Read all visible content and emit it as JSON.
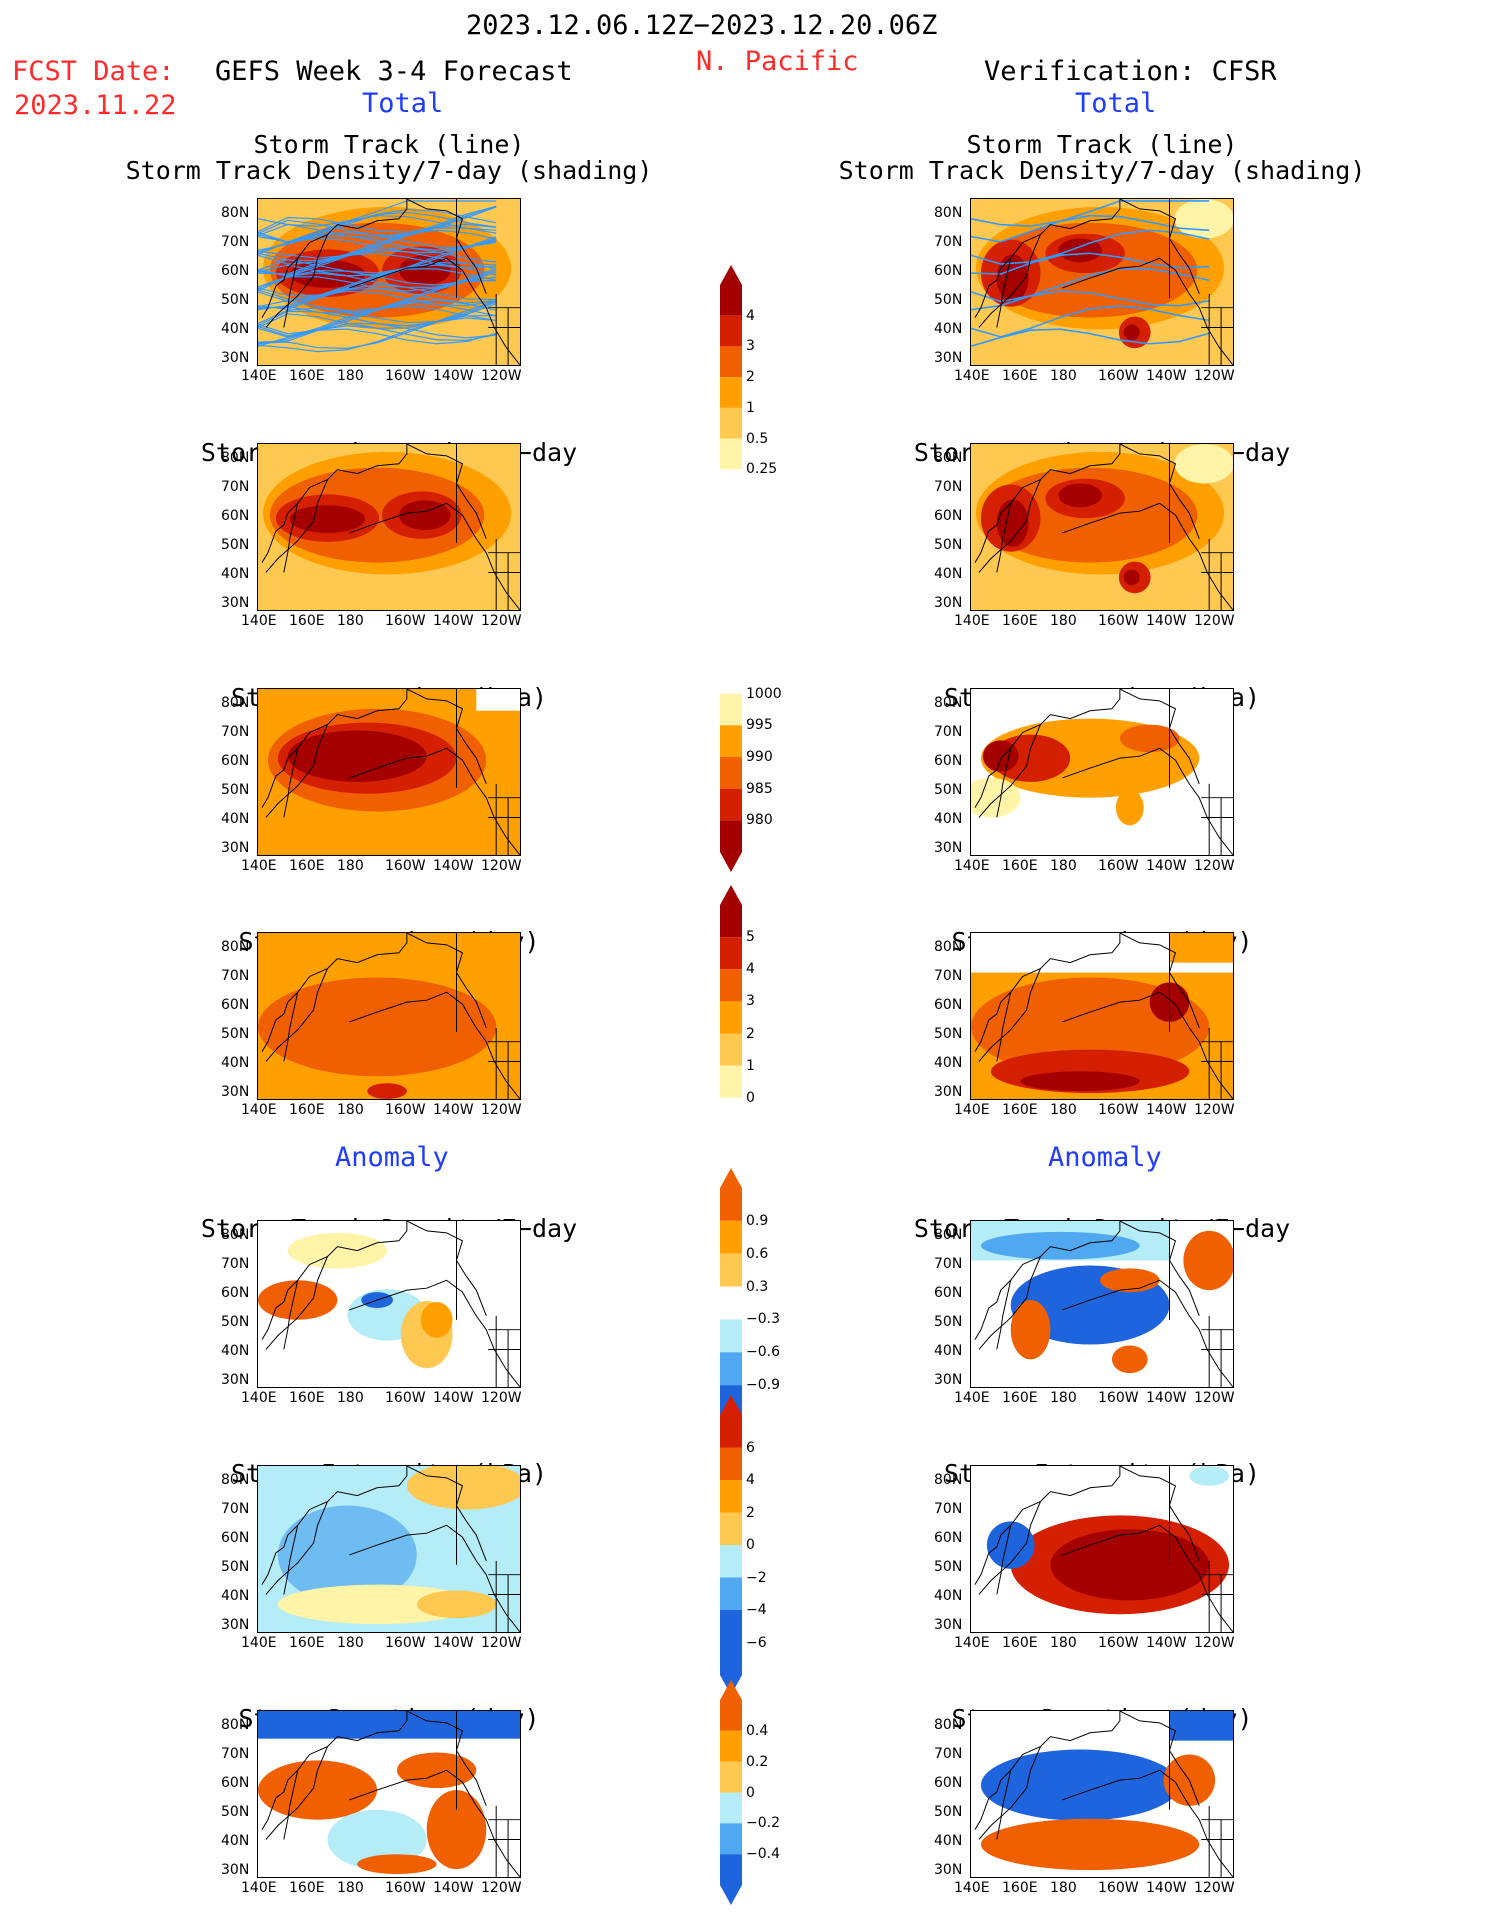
{
  "header": {
    "period": "2023.12.06.12Z−2023.12.20.06Z",
    "region": "N. Pacific",
    "fcst_date_label": "FCST Date:",
    "fcst_date": "2023.11.22",
    "forecast_title": "GEFS Week 3-4 Forecast",
    "verification_title": "Verification: CFSR",
    "total_left": "Total",
    "total_right": "Total",
    "anomaly_left": "Anomaly",
    "anomaly_right": "Anomaly"
  },
  "panel_titles": {
    "track_line": "Storm Track (line)",
    "track_density_shading": "Storm Track Density/7-day (shading)",
    "track_density": "Storm Track Density/7−day",
    "intensity": "Storm Intensity (hPa)",
    "duration": "Storm Duration (day)"
  },
  "axes": {
    "y_ticks": [
      "80N",
      "70N",
      "60N",
      "50N",
      "40N",
      "30N"
    ],
    "x_ticks": [
      "140E",
      "160E",
      "180",
      "160W",
      "140W",
      "120W"
    ]
  },
  "colorbars": {
    "track_density_total": [
      "4",
      "3",
      "2",
      "1",
      "0.5",
      "0.25"
    ],
    "intensity_total": [
      "1000",
      "995",
      "990",
      "985",
      "980"
    ],
    "duration_total": [
      "5",
      "4",
      "3",
      "2",
      "1",
      "0"
    ],
    "track_density_anom": [
      "0.9",
      "0.6",
      "0.3",
      "−0.3",
      "−0.6",
      "−0.9"
    ],
    "intensity_anom": [
      "6",
      "4",
      "2",
      "0",
      "−2",
      "−4",
      "−6"
    ],
    "duration_anom": [
      "0.4",
      "0.2",
      "0",
      "−0.2",
      "−0.4"
    ]
  },
  "colors": {
    "dark_red": "#a50000",
    "red": "#d42000",
    "orange_red": "#f06000",
    "orange": "#ffa000",
    "light_orange": "#ffc850",
    "pale_yellow": "#fff4a8",
    "light_blue": "#b4ecf8",
    "mid_blue": "#50a8f0",
    "blue": "#1e64dc",
    "track_blue": "#3399ff"
  }
}
